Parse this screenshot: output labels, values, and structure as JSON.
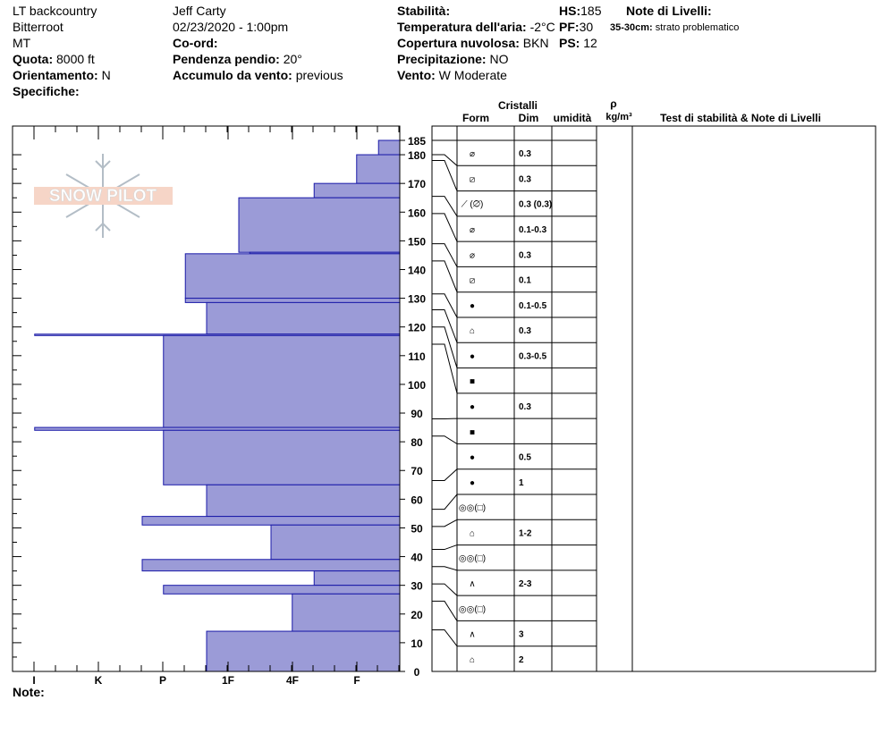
{
  "header": {
    "location": "LT backcountry",
    "range": "Bitterroot",
    "state": "MT",
    "elevation_label": "Quota:",
    "elevation_value": "8000 ft",
    "aspect_label": "Orientamento:",
    "aspect_value": "N",
    "specifics_label": "Specifiche:",
    "observer": "Jeff Carty",
    "datetime": "02/23/2020 - 1:00pm",
    "coord_label": "Co-ord:",
    "slope_label": "Pendenza pendio:",
    "slope_value": "20°",
    "wind_loading_label": "Accumulo da vento:",
    "wind_loading_value": "previous",
    "stability_label": "Stabilità:",
    "air_temp_label": "Temperatura dell'aria:",
    "air_temp_value": "-2°C",
    "sky_label": "Copertura nuvolosa:",
    "sky_value": "BKN",
    "precip_label": "Precipitazione:",
    "precip_value": "NO",
    "wind_label": "Vento:",
    "wind_value": "W Moderate",
    "hs_label": "HS:",
    "hs_value": "185",
    "pf_label": "PF:",
    "pf_value": "30",
    "ps_label": "PS:",
    "ps_value": "12",
    "layer_notes_label": "Note di Livelli:",
    "layer_note_range": "35-30cm:",
    "layer_note_text": "strato problematico",
    "notes_label": "Note:"
  },
  "watermark": "SNOW PILOT",
  "columns": {
    "crystals": "Cristalli",
    "form": "Form",
    "size": "Dim",
    "moisture": "umidità",
    "density_symbol": "ρ",
    "density_unit": "kg/m³",
    "tests": "Test di stabilità & Note di Livelli"
  },
  "colors": {
    "hardness_fill": "#9b9bd7",
    "hardness_stroke": "#1a1aa8",
    "line": "#000000"
  },
  "chart_data": {
    "type": "bar",
    "title": "",
    "x_axis": {
      "label": "",
      "ticks": [
        "I",
        "K",
        "P",
        "1F",
        "4F",
        "F"
      ],
      "direction": "reversed"
    },
    "y_axis": {
      "label": "",
      "range": [
        0,
        185
      ],
      "ticks": [
        0,
        10,
        20,
        30,
        40,
        50,
        60,
        70,
        80,
        90,
        100,
        110,
        120,
        130,
        140,
        150,
        160,
        170,
        180,
        185
      ]
    },
    "hardness_scale_note": "0 = F (right) … 5 = I (left)",
    "hardness_layers": [
      {
        "top": 185,
        "bottom": 180,
        "hardness": 0.33
      },
      {
        "top": 180,
        "bottom": 170,
        "hardness": 0.67
      },
      {
        "top": 170,
        "bottom": 165,
        "hardness": 1.33
      },
      {
        "top": 165,
        "bottom": 146,
        "hardness": 2.5
      },
      {
        "top": 146,
        "bottom": 145.5,
        "hardness": 2.33
      },
      {
        "top": 145.5,
        "bottom": 130,
        "hardness": 3.33
      },
      {
        "top": 130,
        "bottom": 128.5,
        "hardness": 3.33
      },
      {
        "top": 128.5,
        "bottom": 117.5,
        "hardness": 3.0
      },
      {
        "top": 117.5,
        "bottom": 117,
        "hardness": 5.67
      },
      {
        "top": 117,
        "bottom": 85,
        "hardness": 3.67
      },
      {
        "top": 85,
        "bottom": 84,
        "hardness": 5.67
      },
      {
        "top": 84,
        "bottom": 65,
        "hardness": 3.67
      },
      {
        "top": 65,
        "bottom": 54,
        "hardness": 3.0
      },
      {
        "top": 54,
        "bottom": 51,
        "hardness": 4.0
      },
      {
        "top": 51,
        "bottom": 39,
        "hardness": 2.0
      },
      {
        "top": 39,
        "bottom": 35,
        "hardness": 4.0
      },
      {
        "top": 35,
        "bottom": 30,
        "hardness": 1.33
      },
      {
        "top": 30,
        "bottom": 27,
        "hardness": 3.67
      },
      {
        "top": 27,
        "bottom": 14,
        "hardness": 1.67
      },
      {
        "top": 14,
        "bottom": 0,
        "hardness": 3.0
      }
    ],
    "crystal_layers": [
      {
        "top": 185,
        "bottom": 180,
        "form": "⌀",
        "size": "0.3"
      },
      {
        "top": 180,
        "bottom": 178,
        "form": "⧄",
        "size": "0.3"
      },
      {
        "top": 178,
        "bottom": 165.5,
        "form": "⟋ (⌀)",
        "size": "0.3 (0.3)"
      },
      {
        "top": 165.5,
        "bottom": 159.5,
        "form": "⌀",
        "size": "0.1-0.3"
      },
      {
        "top": 159.5,
        "bottom": 149,
        "form": "⌀",
        "size": "0.3"
      },
      {
        "top": 149,
        "bottom": 143,
        "form": "⧄",
        "size": "0.1"
      },
      {
        "top": 143,
        "bottom": 131.5,
        "form": "●",
        "size": "0.1-0.5"
      },
      {
        "top": 131.5,
        "bottom": 126,
        "form": "⌂",
        "size": "0.3"
      },
      {
        "top": 126,
        "bottom": 120,
        "form": "●",
        "size": "0.3-0.5"
      },
      {
        "top": 120,
        "bottom": 114,
        "form": "■",
        "size": ""
      },
      {
        "top": 114,
        "bottom": 88,
        "form": "●",
        "size": "0.3"
      },
      {
        "top": 88,
        "bottom": 82,
        "form": "■",
        "size": ""
      },
      {
        "top": 82,
        "bottom": 66.5,
        "form": "●",
        "size": "0.5"
      },
      {
        "top": 66.5,
        "bottom": 56.5,
        "form": "●",
        "size": "1"
      },
      {
        "top": 56.5,
        "bottom": 50.5,
        "form": "◎◎(□)",
        "size": ""
      },
      {
        "top": 50.5,
        "bottom": 42.5,
        "form": "⌂",
        "size": "1-2"
      },
      {
        "top": 42.5,
        "bottom": 36.5,
        "form": "◎◎(□)",
        "size": ""
      },
      {
        "top": 36.5,
        "bottom": 30.5,
        "form": "∧",
        "size": "2-3"
      },
      {
        "top": 30.5,
        "bottom": 24.5,
        "form": "◎◎(□)",
        "size": ""
      },
      {
        "top": 24.5,
        "bottom": 14.5,
        "form": "∧",
        "size": "3"
      },
      {
        "top": 14.5,
        "bottom": 0,
        "form": "⌂",
        "size": "2"
      }
    ]
  }
}
